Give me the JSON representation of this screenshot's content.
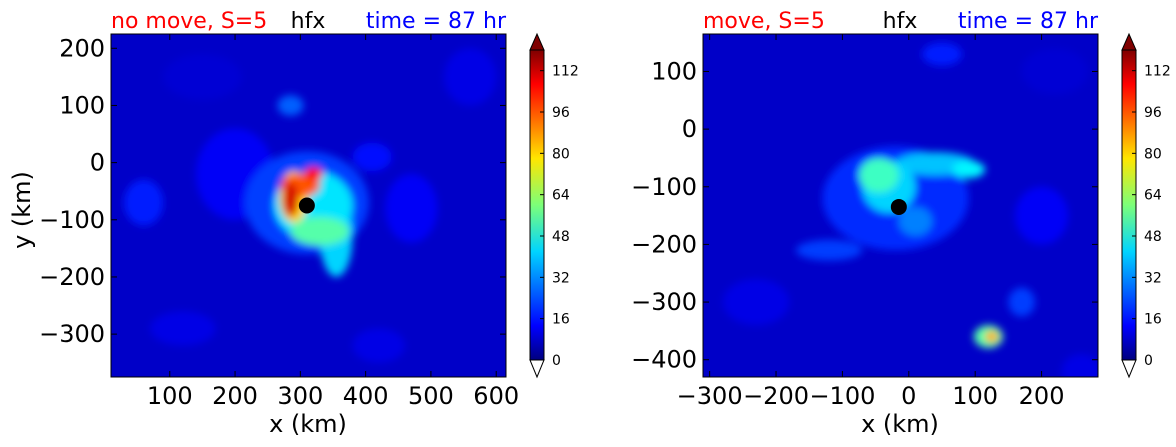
{
  "chart_data": [
    {
      "type": "heatmap",
      "title_left": "no move, S=5",
      "title_center": "hfx",
      "title_right": "time = 87 hr",
      "title_left_color": "#ff0000",
      "title_center_color": "#000000",
      "title_right_color": "#0000ff",
      "xlabel": "x (km)",
      "ylabel": "y (km)",
      "xlim": [
        10,
        615
      ],
      "ylim": [
        -375,
        225
      ],
      "xticks": [
        100,
        200,
        300,
        400,
        500,
        600
      ],
      "yticks": [
        -300,
        -200,
        -100,
        0,
        100,
        200
      ],
      "xtick_labels": [
        "100",
        "200",
        "300",
        "400",
        "500",
        "600"
      ],
      "ytick_labels": [
        "−300",
        "−200",
        "−100",
        "0",
        "100",
        "200"
      ],
      "center_marker": {
        "x": 310,
        "y": -75
      },
      "colorbar": {
        "ticks": [
          0,
          16,
          32,
          48,
          64,
          80,
          96,
          112
        ],
        "tick_labels": [
          "0",
          "16",
          "32",
          "48",
          "64",
          "80",
          "96",
          "112"
        ],
        "extend": "both",
        "range": [
          0,
          120
        ]
      },
      "blobs": [
        {
          "x": 60,
          "y": -70,
          "rx": 30,
          "ry": 40,
          "v": 18
        },
        {
          "x": 200,
          "y": -20,
          "rx": 60,
          "ry": 80,
          "v": 14
        },
        {
          "x": 285,
          "y": 100,
          "rx": 20,
          "ry": 18,
          "v": 26
        },
        {
          "x": 310,
          "y": -70,
          "rx": 95,
          "ry": 90,
          "v": 22
        },
        {
          "x": 320,
          "y": -75,
          "rx": 60,
          "ry": 60,
          "v": 42
        },
        {
          "x": 355,
          "y": -130,
          "rx": 25,
          "ry": 70,
          "v": 40
        },
        {
          "x": 330,
          "y": -120,
          "rx": 45,
          "ry": 25,
          "v": 55
        },
        {
          "x": 290,
          "y": -60,
          "rx": 22,
          "ry": 45,
          "v": 80
        },
        {
          "x": 300,
          "y": -40,
          "rx": 30,
          "ry": 20,
          "v": 95
        },
        {
          "x": 285,
          "y": -65,
          "rx": 12,
          "ry": 30,
          "v": 110
        },
        {
          "x": 320,
          "y": -20,
          "rx": 14,
          "ry": 12,
          "v": 105
        },
        {
          "x": 410,
          "y": 10,
          "rx": 30,
          "ry": 25,
          "v": 16
        },
        {
          "x": 470,
          "y": -80,
          "rx": 40,
          "ry": 60,
          "v": 14
        },
        {
          "x": 120,
          "y": -290,
          "rx": 50,
          "ry": 30,
          "v": 12
        },
        {
          "x": 420,
          "y": -320,
          "rx": 40,
          "ry": 30,
          "v": 12
        },
        {
          "x": 560,
          "y": 150,
          "rx": 40,
          "ry": 50,
          "v": 12
        },
        {
          "x": 150,
          "y": 150,
          "rx": 60,
          "ry": 40,
          "v": 10
        }
      ]
    },
    {
      "type": "heatmap",
      "title_left": "move, S=5",
      "title_center": "hfx",
      "title_right": "time = 87 hr",
      "title_left_color": "#ff0000",
      "title_center_color": "#000000",
      "title_right_color": "#0000ff",
      "xlabel": "x (km)",
      "ylabel": "",
      "xlim": [
        -310,
        285
      ],
      "ylim": [
        -430,
        165
      ],
      "xticks": [
        -300,
        -200,
        -100,
        0,
        100,
        200
      ],
      "yticks": [
        -400,
        -300,
        -200,
        -100,
        0,
        100
      ],
      "xtick_labels": [
        "−300",
        "−200",
        "−100",
        "0",
        "100",
        "200"
      ],
      "ytick_labels": [
        "−400",
        "−300",
        "−200",
        "−100",
        "0",
        "100"
      ],
      "center_marker": {
        "x": -15,
        "y": -135
      },
      "colorbar": {
        "ticks": [
          0,
          16,
          32,
          48,
          64,
          80,
          96,
          112
        ],
        "tick_labels": [
          "0",
          "16",
          "32",
          "48",
          "64",
          "80",
          "96",
          "112"
        ],
        "extend": "both",
        "range": [
          0,
          120
        ]
      },
      "blobs": [
        {
          "x": -20,
          "y": -120,
          "rx": 110,
          "ry": 90,
          "v": 20
        },
        {
          "x": -30,
          "y": -100,
          "rx": 40,
          "ry": 45,
          "v": 40
        },
        {
          "x": -45,
          "y": -80,
          "rx": 30,
          "ry": 30,
          "v": 52
        },
        {
          "x": 40,
          "y": -60,
          "rx": 60,
          "ry": 20,
          "v": 38
        },
        {
          "x": 90,
          "y": -70,
          "rx": 25,
          "ry": 15,
          "v": 44
        },
        {
          "x": 10,
          "y": -160,
          "rx": 25,
          "ry": 25,
          "v": 30
        },
        {
          "x": -120,
          "y": -210,
          "rx": 50,
          "ry": 18,
          "v": 22
        },
        {
          "x": 120,
          "y": -360,
          "rx": 22,
          "ry": 20,
          "v": 55
        },
        {
          "x": 125,
          "y": -360,
          "rx": 10,
          "ry": 10,
          "v": 85
        },
        {
          "x": 170,
          "y": -300,
          "rx": 20,
          "ry": 25,
          "v": 22
        },
        {
          "x": 50,
          "y": 130,
          "rx": 30,
          "ry": 20,
          "v": 18
        },
        {
          "x": -230,
          "y": -300,
          "rx": 50,
          "ry": 40,
          "v": 12
        },
        {
          "x": 200,
          "y": -150,
          "rx": 40,
          "ry": 50,
          "v": 14
        },
        {
          "x": 260,
          "y": -420,
          "rx": 30,
          "ry": 30,
          "v": 12
        },
        {
          "x": 220,
          "y": 100,
          "rx": 50,
          "ry": 40,
          "v": 10
        }
      ]
    }
  ]
}
